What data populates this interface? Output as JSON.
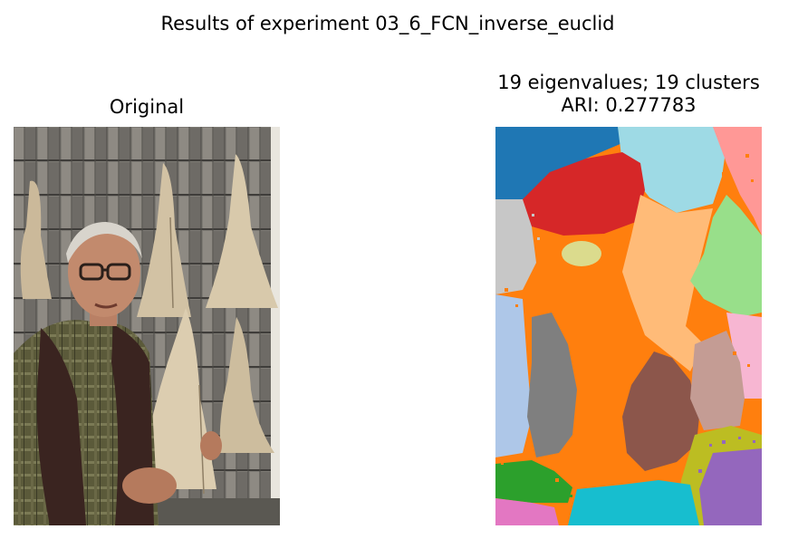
{
  "figure": {
    "suptitle": "Results of experiment 03_6_FCN_inverse_euclid"
  },
  "left_panel": {
    "title": "Original"
  },
  "right_panel": {
    "title_line1": "19 eigenvalues; 19 clusters",
    "title_line2": "ARI: 0.277783",
    "cluster_colors": [
      "#1f77b4",
      "#aec7e8",
      "#ff7f0e",
      "#ffbb78",
      "#2ca02c",
      "#98df8a",
      "#d62728",
      "#ff9896",
      "#9467bd",
      "#c5b0d5",
      "#8c564b",
      "#c49c94",
      "#e377c2",
      "#f7b6d2",
      "#7f7f7f",
      "#c7c7c7",
      "#bcbd22",
      "#dbdb8d",
      "#17becf",
      "#9edae5"
    ]
  }
}
